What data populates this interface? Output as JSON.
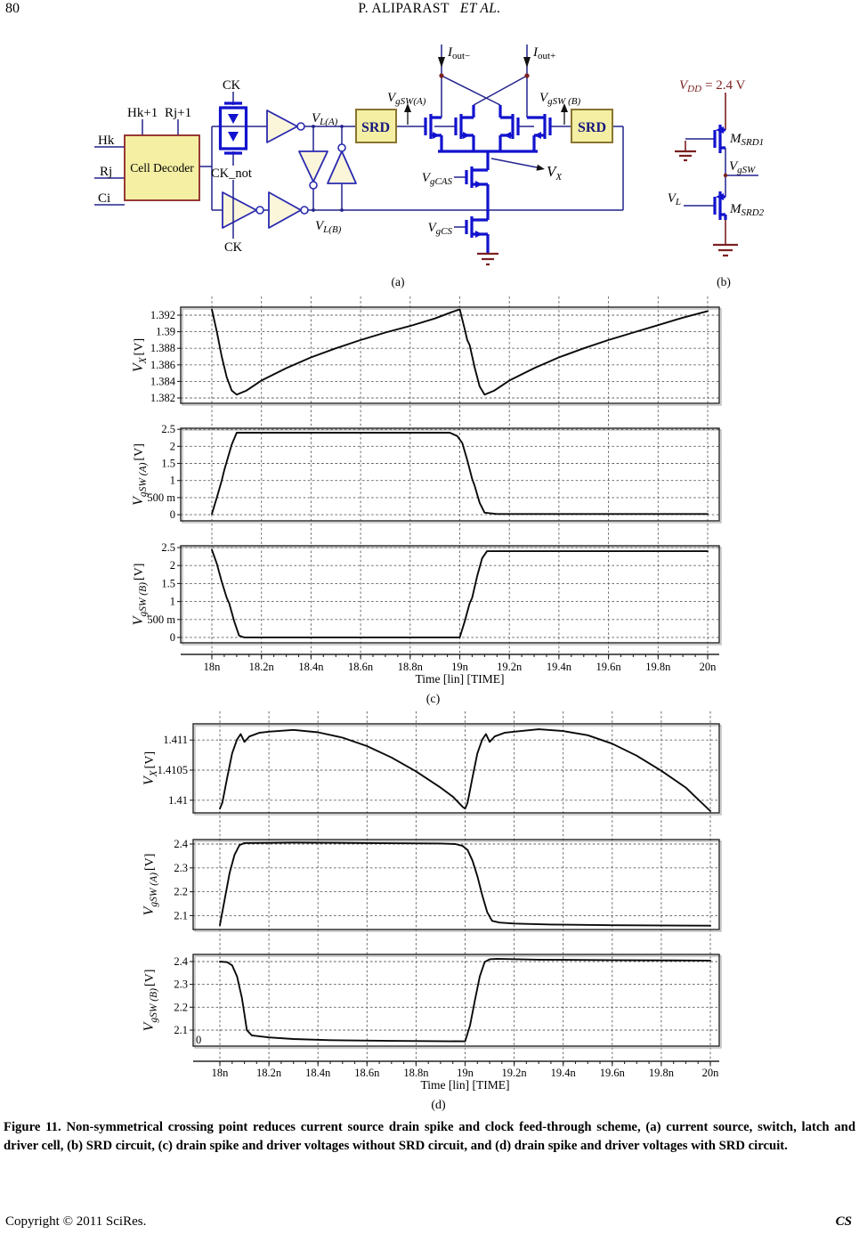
{
  "page": {
    "page_number": "80",
    "running_head": {
      "name": "P. ALIPARAST",
      "etal": "ET  AL."
    },
    "caption": "Figure 11. Non-symmetrical crossing point reduces current source drain spike and clock feed-through scheme, (a) current source, switch, latch and driver cell, (b) SRD circuit, (c) drain spike and driver voltages without SRD circuit, and (d) drain spike and driver voltages with SRD circuit.",
    "footer_left": "Copyright © 2011 SciRes.",
    "footer_right": "CS"
  },
  "colors": {
    "wire_navy": "#23238E",
    "device_blue": "#1212CE",
    "box_yellow": "#F4EFA3",
    "dark_red": "#7B2020",
    "trace_black": "#0a0a0a"
  },
  "circuit_a": {
    "caption": "(a)",
    "decoder": "Cell Decoder",
    "hk": "Hk",
    "rj": "Rj",
    "ci": "Ci",
    "hk1": "Hk+1",
    "rj1": "Rj+1",
    "ck_top": "CK",
    "ck_not": "CK_not",
    "ck_bottom": "CK",
    "vla": {
      "m": "V",
      "s": "L(A)"
    },
    "vlb": {
      "m": "V",
      "s": "L(B)"
    },
    "srd_a": "SRD",
    "srd_b": "SRD",
    "vgsw_a": {
      "m": "V",
      "s": "gSW(A)"
    },
    "vgsw_b": {
      "m": "V",
      "s": "gSW (B)"
    },
    "iout_m": {
      "m": "I",
      "s": "out−"
    },
    "iout_p": {
      "m": "I",
      "s": "out+"
    },
    "vgcas": {
      "m": "V",
      "s": "gCAS"
    },
    "vgcs": {
      "m": "V",
      "s": "gCS"
    },
    "vx": {
      "m": "V",
      "s": "X"
    }
  },
  "circuit_b": {
    "caption": "(b)",
    "vdd": {
      "m": "V",
      "s": "DD",
      "rest": "= 2.4 V"
    },
    "msrd1": {
      "m": "M",
      "s": "SRD1"
    },
    "msrd2": {
      "m": "M",
      "s": "SRD2"
    },
    "vgsw": {
      "m": "V",
      "s": "gSW"
    },
    "vl": {
      "m": "V",
      "s": "L"
    }
  },
  "chart_data": [
    {
      "id": "c",
      "type": "line",
      "caption": "(c)",
      "xlabel": "Time [lin] [TIME]",
      "xlim": [
        18,
        20
      ],
      "grid": true,
      "xticks": [
        {
          "v": 18,
          "label": "18n"
        },
        {
          "v": 18.2,
          "label": "18.2n"
        },
        {
          "v": 18.4,
          "label": "18.4n"
        },
        {
          "v": 18.6,
          "label": "18.6n"
        },
        {
          "v": 18.8,
          "label": "18.8n"
        },
        {
          "v": 19,
          "label": "19n"
        },
        {
          "v": 19.2,
          "label": "19.2n"
        },
        {
          "v": 19.4,
          "label": "19.4n"
        },
        {
          "v": 19.6,
          "label": "19.6n"
        },
        {
          "v": 19.8,
          "label": "19.8n"
        },
        {
          "v": 20,
          "label": "20n"
        }
      ],
      "panels": [
        {
          "ylabel": {
            "m": "V",
            "s": "X",
            "u": "[V]"
          },
          "ylim": [
            1.38135,
            1.39297
          ],
          "yticks": [
            {
              "v": 1.392,
              "label": "1.392"
            },
            {
              "v": 1.39,
              "label": "1.39"
            },
            {
              "v": 1.388,
              "label": "1.388"
            },
            {
              "v": 1.386,
              "label": "1.386"
            },
            {
              "v": 1.384,
              "label": "1.384"
            },
            {
              "v": 1.382,
              "label": "1.382"
            }
          ],
          "series": [
            [
              18,
              1.3927
            ],
            [
              18.02,
              1.39
            ],
            [
              18.04,
              1.387
            ],
            [
              18.06,
              1.3845
            ],
            [
              18.08,
              1.3829
            ],
            [
              18.1,
              1.3824
            ],
            [
              18.14,
              1.3829
            ],
            [
              18.2,
              1.3841
            ],
            [
              18.3,
              1.3856
            ],
            [
              18.4,
              1.3869
            ],
            [
              18.5,
              1.388
            ],
            [
              18.6,
              1.389
            ],
            [
              18.7,
              1.3899
            ],
            [
              18.8,
              1.3907
            ],
            [
              18.9,
              1.3916
            ],
            [
              18.97,
              1.3924
            ],
            [
              19,
              1.3927
            ],
            [
              19.02,
              1.3903
            ],
            [
              19.03,
              1.389
            ],
            [
              19.04,
              1.3884
            ],
            [
              19.06,
              1.3857
            ],
            [
              19.08,
              1.3834
            ],
            [
              19.1,
              1.3824
            ],
            [
              19.14,
              1.3829
            ],
            [
              19.2,
              1.3841
            ],
            [
              19.3,
              1.3856
            ],
            [
              19.4,
              1.3869
            ],
            [
              19.5,
              1.388
            ],
            [
              19.6,
              1.389
            ],
            [
              19.7,
              1.3899
            ],
            [
              19.8,
              1.3908
            ],
            [
              19.9,
              1.3917
            ],
            [
              20,
              1.3925
            ]
          ]
        },
        {
          "ylabel": {
            "m": "V",
            "s": "gSW (A)",
            "u": "[V]"
          },
          "ylim": [
            -0.18,
            2.53
          ],
          "yticks": [
            {
              "v": 2.5,
              "label": "2.5"
            },
            {
              "v": 2,
              "label": "2"
            },
            {
              "v": 1.5,
              "label": "1.5"
            },
            {
              "v": 1,
              "label": "1"
            },
            {
              "v": 0.5,
              "label": "500 m"
            },
            {
              "v": 0,
              "label": "0"
            }
          ],
          "series": [
            [
              18,
              0.02
            ],
            [
              18.02,
              0.5
            ],
            [
              18.04,
              1
            ],
            [
              18.05,
              1.3
            ],
            [
              18.06,
              1.55
            ],
            [
              18.08,
              2.05
            ],
            [
              18.1,
              2.4
            ],
            [
              18.4,
              2.4
            ],
            [
              18.96,
              2.4
            ],
            [
              18.99,
              2.3
            ],
            [
              19.01,
              2.1
            ],
            [
              19.03,
              1.6
            ],
            [
              19.05,
              1.05
            ],
            [
              19.06,
              0.85
            ],
            [
              19.08,
              0.35
            ],
            [
              19.1,
              0.06
            ],
            [
              19.15,
              0.02
            ],
            [
              19.5,
              0.02
            ],
            [
              20,
              0.02
            ]
          ]
        },
        {
          "ylabel": {
            "m": "V",
            "s": "gSW (B)",
            "u": "[V]"
          },
          "ylim": [
            -0.15,
            2.55
          ],
          "yticks": [
            {
              "v": 2.5,
              "label": "2.5"
            },
            {
              "v": 2,
              "label": "2"
            },
            {
              "v": 1.5,
              "label": "1.5"
            },
            {
              "v": 1,
              "label": "1"
            },
            {
              "v": 0.5,
              "label": "500 m"
            },
            {
              "v": 0,
              "label": "0"
            }
          ],
          "series": [
            [
              18,
              2.44
            ],
            [
              18.02,
              2.05
            ],
            [
              18.04,
              1.55
            ],
            [
              18.06,
              1.1
            ],
            [
              18.07,
              0.95
            ],
            [
              18.09,
              0.45
            ],
            [
              18.11,
              0.05
            ],
            [
              18.13,
              0
            ],
            [
              18.5,
              0
            ],
            [
              19,
              0
            ],
            [
              19.02,
              0.45
            ],
            [
              19.04,
              0.95
            ],
            [
              19.05,
              1.1
            ],
            [
              19.07,
              1.7
            ],
            [
              19.09,
              2.2
            ],
            [
              19.11,
              2.4
            ],
            [
              19.5,
              2.4
            ],
            [
              20,
              2.4
            ]
          ]
        }
      ]
    },
    {
      "id": "d",
      "type": "line",
      "caption": "(d)",
      "xlabel": "Time [lin] [TIME]",
      "xlim": [
        18,
        20
      ],
      "grid": true,
      "xticks": [
        {
          "v": 18,
          "label": "18n"
        },
        {
          "v": 18.2,
          "label": "18.2n"
        },
        {
          "v": 18.4,
          "label": "18.4n"
        },
        {
          "v": 18.6,
          "label": "18.6n"
        },
        {
          "v": 18.8,
          "label": "18.8n"
        },
        {
          "v": 19,
          "label": "19n"
        },
        {
          "v": 19.2,
          "label": "19.2n"
        },
        {
          "v": 19.4,
          "label": "19.4n"
        },
        {
          "v": 19.6,
          "label": "19.6n"
        },
        {
          "v": 19.8,
          "label": "19.8n"
        },
        {
          "v": 20,
          "label": "20n"
        }
      ],
      "panels": [
        {
          "ylabel": {
            "m": "V",
            "s": "X",
            "u": "[V]"
          },
          "ylim": [
            1.40979,
            1.41127
          ],
          "yticks": [
            {
              "v": 1.411,
              "label": "1.411"
            },
            {
              "v": 1.4105,
              "label": "1.4105"
            },
            {
              "v": 1.41,
              "label": "1.41"
            }
          ],
          "series": [
            [
              18,
              1.40986
            ],
            [
              18.01,
              1.40996
            ],
            [
              18.03,
              1.41038
            ],
            [
              18.05,
              1.41078
            ],
            [
              18.07,
              1.41101
            ],
            [
              18.085,
              1.4111
            ],
            [
              18.1,
              1.41097
            ],
            [
              18.12,
              1.41106
            ],
            [
              18.16,
              1.41112
            ],
            [
              18.2,
              1.41114
            ],
            [
              18.3,
              1.41117
            ],
            [
              18.4,
              1.41113
            ],
            [
              18.5,
              1.41104
            ],
            [
              18.6,
              1.4109
            ],
            [
              18.7,
              1.41071
            ],
            [
              18.8,
              1.41048
            ],
            [
              18.9,
              1.41021
            ],
            [
              18.95,
              1.41006
            ],
            [
              18.99,
              1.40989
            ],
            [
              19,
              1.40986
            ],
            [
              19.01,
              1.40996
            ],
            [
              19.03,
              1.41038
            ],
            [
              19.05,
              1.41078
            ],
            [
              19.07,
              1.41101
            ],
            [
              19.085,
              1.4111
            ],
            [
              19.1,
              1.41097
            ],
            [
              19.12,
              1.41106
            ],
            [
              19.16,
              1.41112
            ],
            [
              19.2,
              1.41114
            ],
            [
              19.3,
              1.41118
            ],
            [
              19.4,
              1.41115
            ],
            [
              19.5,
              1.41108
            ],
            [
              19.6,
              1.41094
            ],
            [
              19.7,
              1.41074
            ],
            [
              19.8,
              1.41049
            ],
            [
              19.9,
              1.41021
            ],
            [
              20,
              1.40982
            ]
          ]
        },
        {
          "ylabel": {
            "m": "V",
            "s": "gSW (A)",
            "u": "[V]"
          },
          "ylim": [
            2.042,
            2.4185
          ],
          "yticks": [
            {
              "v": 2.4,
              "label": "2.4"
            },
            {
              "v": 2.3,
              "label": "2.3"
            },
            {
              "v": 2.2,
              "label": "2.2"
            },
            {
              "v": 2.1,
              "label": "2.1"
            }
          ],
          "series": [
            [
              18,
              2.06
            ],
            [
              18.02,
              2.17
            ],
            [
              18.04,
              2.28
            ],
            [
              18.06,
              2.355
            ],
            [
              18.08,
              2.395
            ],
            [
              18.1,
              2.404
            ],
            [
              18.3,
              2.406
            ],
            [
              18.6,
              2.404
            ],
            [
              18.9,
              2.402
            ],
            [
              18.96,
              2.4
            ],
            [
              18.99,
              2.392
            ],
            [
              19.01,
              2.375
            ],
            [
              19.03,
              2.33
            ],
            [
              19.05,
              2.265
            ],
            [
              19.07,
              2.185
            ],
            [
              19.09,
              2.115
            ],
            [
              19.11,
              2.078
            ],
            [
              19.14,
              2.071
            ],
            [
              19.2,
              2.067
            ],
            [
              19.35,
              2.063
            ],
            [
              19.6,
              2.06
            ],
            [
              20,
              2.058
            ]
          ]
        },
        {
          "ylabel": {
            "m": "V",
            "s": "gSW (B)",
            "u": "[V]"
          },
          "ylim": [
            2.03,
            2.431
          ],
          "origin_label": "0",
          "yticks": [
            {
              "v": 2.4,
              "label": "2.4"
            },
            {
              "v": 2.3,
              "label": "2.3"
            },
            {
              "v": 2.2,
              "label": "2.2"
            },
            {
              "v": 2.1,
              "label": "2.1"
            }
          ],
          "series": [
            [
              18,
              2.4
            ],
            [
              18.03,
              2.397
            ],
            [
              18.05,
              2.383
            ],
            [
              18.07,
              2.335
            ],
            [
              18.09,
              2.24
            ],
            [
              18.1,
              2.17
            ],
            [
              18.11,
              2.1
            ],
            [
              18.13,
              2.077
            ],
            [
              18.2,
              2.068
            ],
            [
              18.3,
              2.061
            ],
            [
              18.45,
              2.056
            ],
            [
              18.7,
              2.053
            ],
            [
              19,
              2.051
            ],
            [
              19.02,
              2.12
            ],
            [
              19.04,
              2.23
            ],
            [
              19.06,
              2.335
            ],
            [
              19.08,
              2.398
            ],
            [
              19.1,
              2.41
            ],
            [
              19.13,
              2.412
            ],
            [
              19.3,
              2.408
            ],
            [
              19.6,
              2.406
            ],
            [
              20,
              2.404
            ]
          ]
        }
      ]
    }
  ]
}
